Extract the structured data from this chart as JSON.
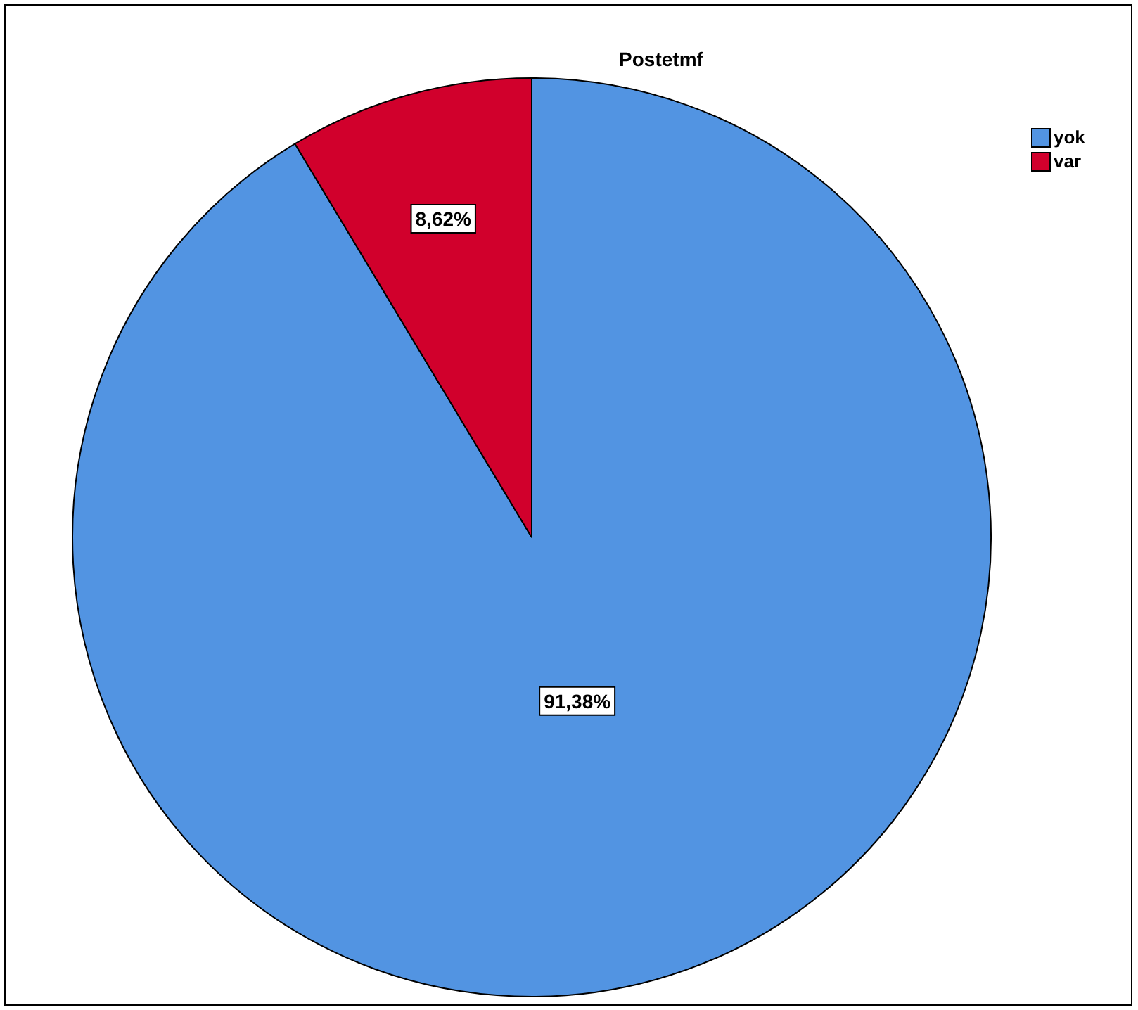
{
  "chart_data": {
    "type": "pie",
    "title": "Postetmf",
    "categories": [
      "yok",
      "var"
    ],
    "values": [
      91.38,
      8.62
    ],
    "colors": [
      "#5294e2",
      "#d1002c"
    ],
    "value_labels": [
      "91,38%",
      "8,62%"
    ],
    "legend": "top right"
  }
}
